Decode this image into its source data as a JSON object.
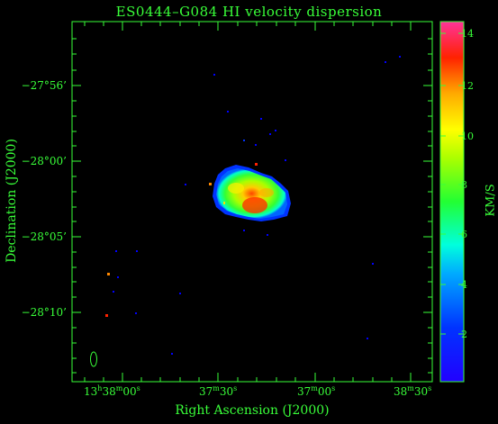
{
  "title": "ES0444–G084  HI velocity dispersion",
  "xlabel": "Right Ascension (J2000)",
  "ylabel": "Declination (J2000)",
  "colorbar_label": "KM/S",
  "y_ticks": [
    "−27°56’",
    "−28°00’",
    "−28°05’",
    "−28°10’"
  ],
  "x_ticks": [
    {
      "h": "13",
      "hs": "h",
      "m": "38",
      "ms": "m",
      "s": "00",
      "ss": "s"
    },
    {
      "h": "",
      "hs": "",
      "m": "37",
      "ms": "m",
      "s": "30",
      "ss": "s"
    },
    {
      "h": "",
      "hs": "",
      "m": "37",
      "ms": "m",
      "s": "00",
      "ss": "s"
    },
    {
      "h": "",
      "hs": "",
      "m": "38",
      "ms": "m",
      "s": "30",
      "ss": "s"
    }
  ],
  "colorbar_ticks": [
    "14",
    "12",
    "10",
    "8",
    "6",
    "4",
    "2"
  ],
  "colors": {
    "axis": "#39ff39",
    "background": "#000000"
  }
}
